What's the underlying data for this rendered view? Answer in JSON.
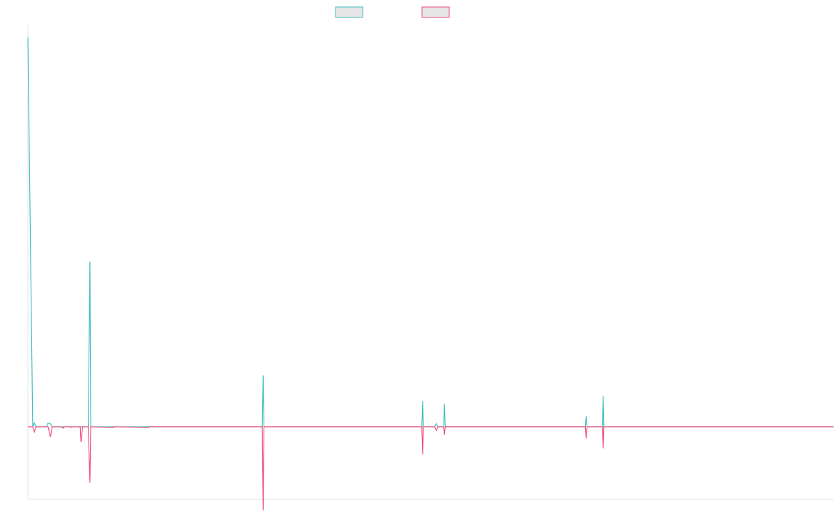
{
  "colors": {
    "series_1": "#3fbcbf",
    "series_2": "#ee4c7b",
    "legend_fill": "#e6e6e6",
    "axis": "#e3e3e3"
  },
  "chart_data": {
    "type": "line",
    "grid": false,
    "legend_position": "top-center",
    "xlim": [
      0,
      1000
    ],
    "ylim": [
      -100,
      650
    ],
    "x": [
      0,
      6,
      8,
      10,
      23,
      25,
      28,
      30,
      32,
      41,
      44,
      45,
      52,
      54,
      55,
      65,
      66,
      68,
      74,
      75,
      77,
      78,
      80,
      106,
      107,
      108,
      150,
      151,
      152,
      290,
      291,
      292,
      293,
      294,
      488,
      489,
      490,
      491,
      492,
      505,
      507,
      509,
      515,
      516,
      517,
      518,
      519,
      691,
      692,
      693,
      694,
      695,
      712,
      713,
      714,
      715,
      716,
      1000
    ],
    "series": [
      {
        "name": "",
        "values": [
          630,
          0,
          6,
          0,
          0,
          6,
          5,
          0,
          0,
          0,
          0,
          0,
          0,
          0,
          0,
          0,
          0,
          0,
          0,
          0,
          267,
          0,
          0,
          0,
          0,
          0,
          0,
          0,
          0,
          0,
          0,
          83,
          0,
          0,
          0,
          0,
          42,
          0,
          0,
          0,
          5,
          0,
          0,
          0,
          37,
          0,
          0,
          0,
          0,
          17,
          0,
          0,
          0,
          0,
          50,
          0,
          0,
          0
        ]
      },
      {
        "name": "",
        "values": [
          0,
          0,
          -7,
          0,
          0,
          0,
          -14,
          0,
          0,
          0,
          -2,
          0,
          0,
          -1,
          0,
          0,
          -21,
          0,
          0,
          0,
          -77,
          0,
          0,
          -1,
          0,
          0,
          -1,
          0,
          0,
          0,
          0,
          -115,
          0,
          0,
          0,
          0,
          -38,
          0,
          0,
          0,
          -5,
          0,
          0,
          0,
          -11,
          0,
          0,
          0,
          0,
          -16,
          0,
          0,
          0,
          0,
          -30,
          0,
          0,
          0
        ]
      }
    ]
  }
}
